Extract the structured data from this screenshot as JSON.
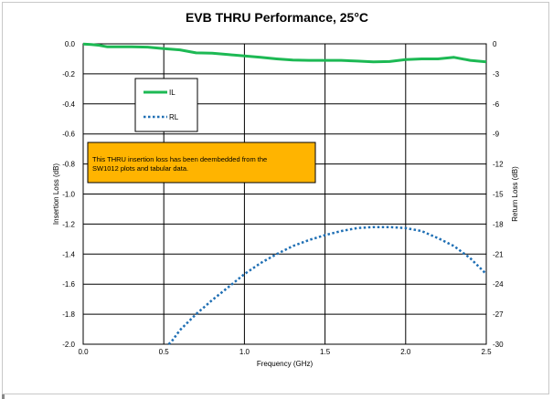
{
  "chart_data": {
    "type": "line",
    "title": "EVB THRU Performance, 25°C",
    "xlabel": "Frequency (GHz)",
    "ylabel_left": "Insertion Loss (dB)",
    "ylabel_right": "Return Loss (dB)",
    "xlim": [
      0,
      2.5
    ],
    "ylim_left": [
      -2.0,
      0.0
    ],
    "ylim_right": [
      -30,
      0
    ],
    "x_ticks": [
      "0.0",
      "0.5",
      "1.0",
      "1.5",
      "2.0",
      "2.5"
    ],
    "y_ticks_left": [
      "0.0",
      "-0.2",
      "-0.4",
      "-0.6",
      "-0.8",
      "-1.0",
      "-1.2",
      "-1.4",
      "-1.6",
      "-1.8",
      "-2.0"
    ],
    "y_ticks_right": [
      "0",
      "-3",
      "-6",
      "-9",
      "-12",
      "-15",
      "-18",
      "-21",
      "-24",
      "-27",
      "-30"
    ],
    "grid": true,
    "legend_placement": "upper-left",
    "annotation": {
      "lines": [
        "This THRU  insertion loss has been deembedded from the",
        "SW1012 plots and tabular data."
      ],
      "background": "#ffb400"
    },
    "series": [
      {
        "name": "IL",
        "axis": "left",
        "color": "#1db954",
        "style": "solid",
        "x": [
          0.0,
          0.05,
          0.1,
          0.15,
          0.2,
          0.3,
          0.4,
          0.5,
          0.6,
          0.7,
          0.8,
          0.9,
          1.0,
          1.1,
          1.2,
          1.3,
          1.4,
          1.5,
          1.6,
          1.7,
          1.8,
          1.9,
          2.0,
          2.1,
          2.2,
          2.3,
          2.4,
          2.5
        ],
        "y": [
          -0.002,
          -0.005,
          -0.01,
          -0.02,
          -0.02,
          -0.02,
          -0.022,
          -0.032,
          -0.04,
          -0.06,
          -0.062,
          -0.072,
          -0.08,
          -0.09,
          -0.1,
          -0.108,
          -0.11,
          -0.11,
          -0.11,
          -0.115,
          -0.12,
          -0.118,
          -0.105,
          -0.1,
          -0.1,
          -0.09,
          -0.11,
          -0.12
        ]
      },
      {
        "name": "RL",
        "axis": "right",
        "color": "#1f6fb4",
        "style": "dotted",
        "x": [
          0.53,
          0.55,
          0.6,
          0.7,
          0.8,
          0.9,
          1.0,
          1.1,
          1.2,
          1.3,
          1.4,
          1.5,
          1.6,
          1.7,
          1.8,
          1.9,
          2.0,
          2.1,
          2.2,
          2.3,
          2.4,
          2.5
        ],
        "y": [
          -30,
          -29.7,
          -28.6,
          -27.0,
          -25.6,
          -24.3,
          -23.0,
          -21.9,
          -21.0,
          -20.2,
          -19.6,
          -19.1,
          -18.7,
          -18.4,
          -18.3,
          -18.3,
          -18.4,
          -18.7,
          -19.4,
          -20.2,
          -21.4,
          -23.0
        ]
      }
    ]
  }
}
